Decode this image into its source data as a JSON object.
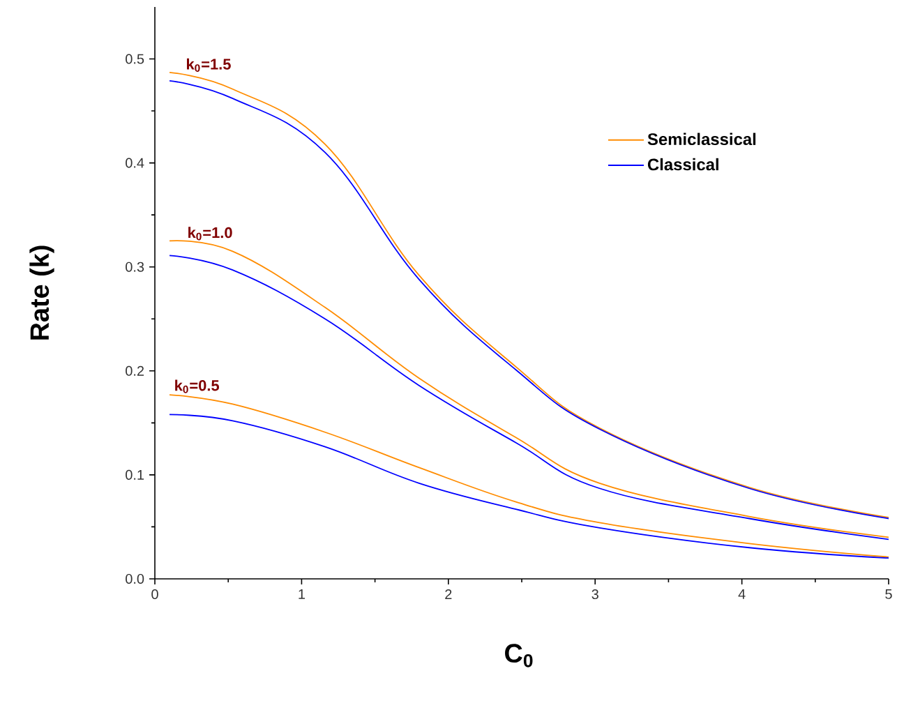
{
  "chart_data": {
    "type": "line",
    "xlabel": "C$_{0}$",
    "ylabel": "Rate (k)",
    "x": [
      0.1,
      0.53,
      1.16,
      1.8,
      2.46,
      3.03,
      4.05,
      5.0
    ],
    "series": [
      {
        "name": "Semiclassical",
        "color": "#ff8c00",
        "values": [
          0.487,
          0.471,
          0.418,
          0.292,
          0.204,
          0.145,
          0.088,
          0.059
        ]
      },
      {
        "name": "Classical",
        "color": "#0000ff",
        "values": [
          0.479,
          0.462,
          0.41,
          0.288,
          0.201,
          0.144,
          0.087,
          0.058
        ]
      },
      {
        "color": "#ff8c00",
        "values": [
          0.325,
          0.315,
          0.261,
          0.193,
          0.136,
          0.092,
          0.06,
          0.04
        ]
      },
      {
        "color": "#0000ff",
        "values": [
          0.311,
          0.297,
          0.25,
          0.186,
          0.131,
          0.087,
          0.058,
          0.038
        ]
      },
      {
        "color": "#ff8c00",
        "values": [
          0.177,
          0.168,
          0.141,
          0.107,
          0.074,
          0.054,
          0.034,
          0.021
        ]
      },
      {
        "color": "#0000ff",
        "values": [
          0.158,
          0.152,
          0.127,
          0.092,
          0.067,
          0.049,
          0.03,
          0.02
        ]
      }
    ],
    "annotations": [
      {
        "text": "k$_{0}$=1.5",
        "x": 0.2,
        "y": 0.486
      },
      {
        "text": "k$_{0}$=1.0",
        "x": 0.21,
        "y": 0.324
      },
      {
        "text": "k$_{0}$=0.5",
        "x": 0.12,
        "y": 0.177
      }
    ],
    "xlim": [
      0,
      5
    ],
    "ylim": [
      0,
      0.55
    ],
    "xticks": [
      0,
      1,
      2,
      3,
      4,
      5
    ],
    "yticks": [
      {
        "value": 0,
        "label": "0.0"
      },
      0.1,
      0.2,
      0.3,
      0.4,
      0.5
    ],
    "grid": false,
    "legend": "top right",
    "marker": "none",
    "line_style": "solid"
  }
}
